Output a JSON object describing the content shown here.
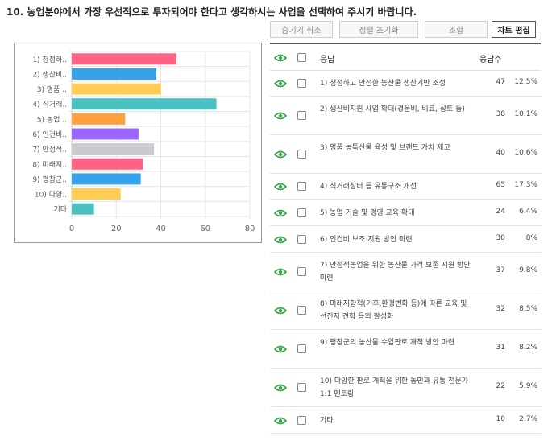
{
  "question": "10. 농업분야에서 가장 우선적으로 투자되어야 한다고 생각하시는 사업을 선택하여 주시기 바랍니다.",
  "toolbar": {
    "hide_cancel": "숨기기 취소",
    "sort_reset": "정렬 초기화",
    "combine": "조합",
    "chart_edit": "차트 편집"
  },
  "table_header": {
    "response": "응답",
    "count": "응답수"
  },
  "colors": {
    "eye": "#3aa44a",
    "bars": [
      "#ff6384",
      "#36a2eb",
      "#ffcd56",
      "#4bc0c0",
      "#ff9f40",
      "#9966ff",
      "#c9cbcf",
      "#ff6384",
      "#36a2eb",
      "#ffcd56",
      "#4bc0c0"
    ]
  },
  "rows": [
    {
      "label": "1) 청정하고 안전한 농산물 생산기반 조성",
      "count": "47",
      "pct": "12.5%"
    },
    {
      "label": "2) 생산비지원 사업 확대(경운비, 비료, 상토 등)",
      "count": "38",
      "pct": "10.1%"
    },
    {
      "label": "3) 명품 농특산물 육성 및 브랜드 가치 제고",
      "count": "40",
      "pct": "10.6%"
    },
    {
      "label": "4) 직거래장터 등 유통구조 개선",
      "count": "65",
      "pct": "17.3%"
    },
    {
      "label": "5) 농업 기술 및 경영 교육 확대",
      "count": "24",
      "pct": "6.4%"
    },
    {
      "label": "6) 인건비 보조 지원 방안 마련",
      "count": "30",
      "pct": "8%"
    },
    {
      "label": "7) 안정적농업을 위한 농산물 가격 보존 지원 방안 마련",
      "count": "37",
      "pct": "9.8%"
    },
    {
      "label": "8) 미래지향적(기후,환경변화 등)에 따른 교육 및 선진지 견학 등의 활성화",
      "count": "32",
      "pct": "8.5%"
    },
    {
      "label": "9) 평창군의 농산물 수입판로 개척 방안 마련",
      "count": "31",
      "pct": "8.2%"
    },
    {
      "label": "10) 다양한 판로 개척을 위한 농민과 유통 전문가 1:1 멘토링",
      "count": "22",
      "pct": "5.9%"
    },
    {
      "label": "기타",
      "count": "10",
      "pct": "2.7%"
    }
  ],
  "chart_data": {
    "type": "bar",
    "orientation": "horizontal",
    "categories": [
      "1) 청정하..",
      "2) 생산비..",
      "3) 명품 ..",
      "4) 직거래..",
      "5) 농업 ..",
      "6) 인건비..",
      "7) 안정적..",
      "8) 미래지..",
      "9) 평창군..",
      "10) 다양..",
      "기타"
    ],
    "values": [
      47,
      38,
      40,
      65,
      24,
      30,
      37,
      32,
      31,
      22,
      10
    ],
    "xlim": [
      0,
      80
    ],
    "xticks": [
      "0",
      "20",
      "40",
      "60",
      "80"
    ],
    "grid": true
  }
}
